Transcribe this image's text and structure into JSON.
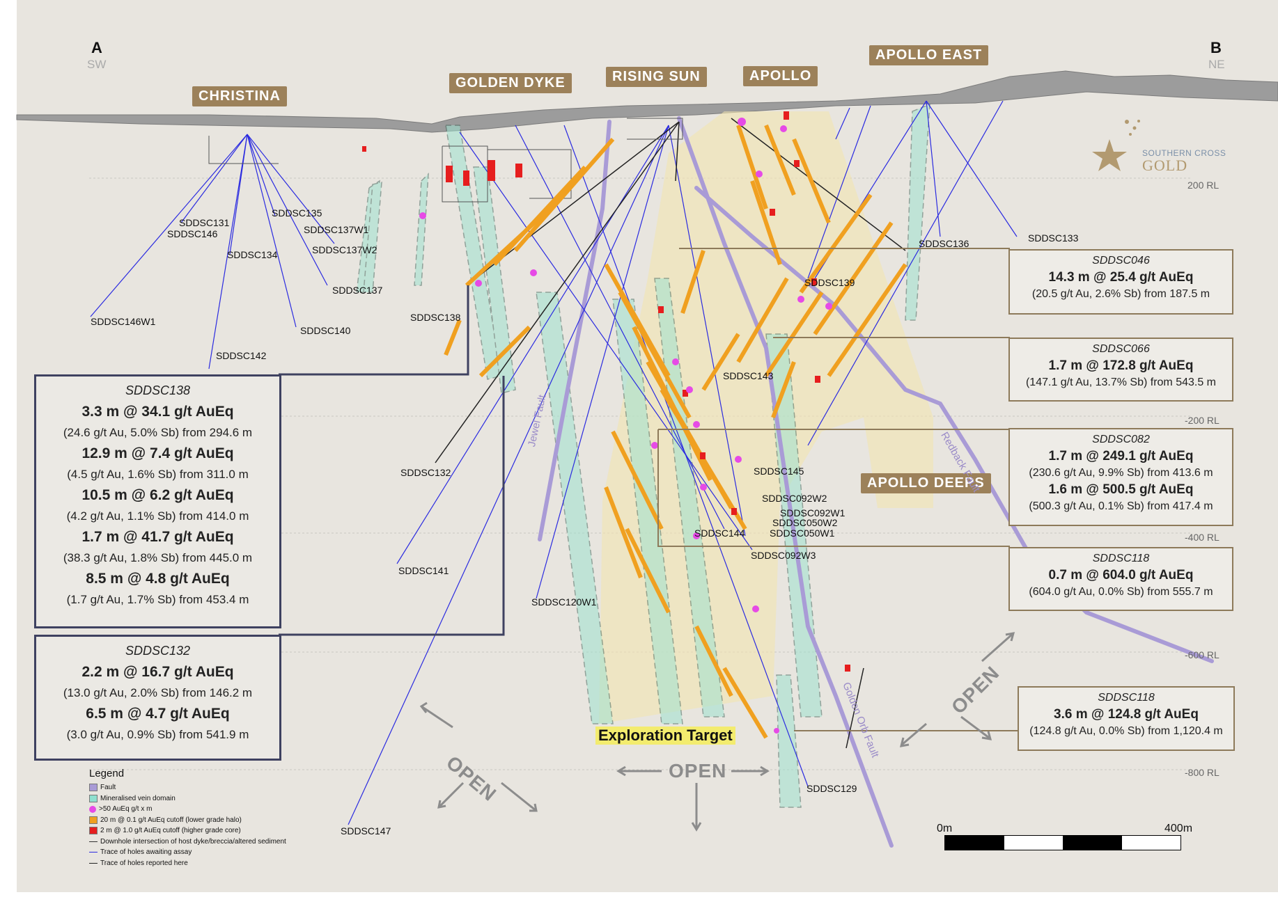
{
  "section": {
    "left_end": "A",
    "left_dir": "SW",
    "right_end": "B",
    "right_dir": "NE"
  },
  "prospects": [
    "CHRISTINA",
    "GOLDEN DYKE",
    "RISING SUN",
    "APOLLO",
    "APOLLO EAST",
    "APOLLO DEEPS"
  ],
  "rl_levels": [
    "200 RL",
    "-200 RL",
    "-400 RL",
    "-600 RL",
    "-800 RL"
  ],
  "faults": [
    "Jewel Fault",
    "Redback Fault",
    "Golden Orb Fault"
  ],
  "open_labels": [
    "OPEN",
    "OPEN",
    "OPEN"
  ],
  "exploration_target": "Exploration Target",
  "holes": [
    "SDDSC131",
    "SDDSC146",
    "SDDSC135",
    "SDDSC137W1",
    "SDDSC137W2",
    "SDDSC134",
    "SDDSC137",
    "SDDSC146W1",
    "SDDSC140",
    "SDDSC142",
    "SDDSC138",
    "SDDSC132",
    "SDDSC141",
    "SDDSC120W1",
    "SDDSC147",
    "SDDSC136",
    "SDDSC133",
    "SDDSC139",
    "SDDSC143",
    "SDDSC145",
    "SDDSC092W2",
    "SDDSC092W1",
    "SDDSC050W2",
    "SDDSC050W1",
    "SDDSC144",
    "SDDSC092W3",
    "SDDSC129"
  ],
  "callouts_right": [
    {
      "hole": "SDDSC046",
      "results": [
        {
          "main": "14.3 m @ 25.4 g/t AuEq",
          "detail": "(20.5 g/t Au, 2.6% Sb) from 187.5 m"
        }
      ]
    },
    {
      "hole": "SDDSC066",
      "results": [
        {
          "main": "1.7 m @ 172.8 g/t AuEq",
          "detail": "(147.1 g/t Au, 13.7% Sb) from 543.5 m"
        }
      ]
    },
    {
      "hole": "SDDSC082",
      "results": [
        {
          "main": "1.7 m @ 249.1 g/t AuEq",
          "detail": "(230.6 g/t Au, 9.9% Sb) from 413.6 m"
        },
        {
          "main": "1.6 m @ 500.5 g/t AuEq",
          "detail": "(500.3 g/t Au, 0.1% Sb) from 417.4 m"
        }
      ]
    },
    {
      "hole": "SDDSC118",
      "results": [
        {
          "main": "0.7 m @ 604.0 g/t AuEq",
          "detail": "(604.0 g/t Au, 0.0% Sb) from 555.7 m"
        }
      ]
    },
    {
      "hole": "SDDSC118",
      "results": [
        {
          "main": "3.6 m @ 124.8 g/t AuEq",
          "detail": "(124.8 g/t Au, 0.0% Sb) from 1,120.4 m"
        }
      ]
    }
  ],
  "callouts_left": [
    {
      "hole": "SDDSC138",
      "results": [
        {
          "main": "3.3 m @ 34.1 g/t AuEq",
          "detail": "(24.6 g/t Au, 5.0% Sb) from 294.6 m"
        },
        {
          "main": "12.9 m @ 7.4 g/t AuEq",
          "detail": "(4.5 g/t Au, 1.6% Sb) from 311.0 m"
        },
        {
          "main": "10.5 m @ 6.2 g/t AuEq",
          "detail": "(4.2 g/t Au, 1.1% Sb) from 414.0 m"
        },
        {
          "main": "1.7 m @ 41.7 g/t AuEq",
          "detail": "(38.3 g/t Au, 1.8% Sb) from 445.0 m"
        },
        {
          "main": "8.5 m @ 4.8 g/t AuEq",
          "detail": "(1.7 g/t Au, 1.7% Sb) from 453.4 m"
        }
      ]
    },
    {
      "hole": "SDDSC132",
      "results": [
        {
          "main": "2.2 m @ 16.7 g/t AuEq",
          "detail": "(13.0 g/t Au, 2.0% Sb) from 146.2 m"
        },
        {
          "main": "6.5 m @ 4.7 g/t AuEq",
          "detail": "(3.0 g/t Au, 0.9% Sb) from 541.9 m"
        }
      ]
    }
  ],
  "legend": {
    "title": "Legend",
    "items": [
      {
        "label": "Fault",
        "color": "#a99bd6",
        "kind": "box"
      },
      {
        "label": "Mineralised vein domain",
        "color": "#8fe0cf",
        "kind": "box"
      },
      {
        "label": ">50 AuEq g/t x m",
        "color": "#e64ae6",
        "kind": "dot"
      },
      {
        "label": "20 m @ 0.1 g/t AuEq cutoff (lower grade halo)",
        "color": "#f0a020",
        "kind": "box"
      },
      {
        "label": "2 m @ 1.0 g/t AuEq cutoff (higher grade core)",
        "color": "#e61e1e",
        "kind": "box"
      },
      {
        "label": "Downhole intersection of host dyke/breccia/altered sediment",
        "color": "#333333",
        "kind": "line"
      },
      {
        "label": "Trace of holes awaiting assay",
        "color": "#2a2ae0",
        "kind": "line"
      },
      {
        "label": "Trace of holes reported here",
        "color": "#222222",
        "kind": "line"
      }
    ]
  },
  "scale": {
    "start": "0m",
    "end": "400m"
  },
  "logo": {
    "line1": "SOUTHERN CROSS",
    "line2": "GOLD"
  },
  "colors": {
    "background": "#e8e5df",
    "badge": "#9c815a",
    "assay_trace": "#2a2ae0",
    "fault": "#a99bd6",
    "vein": "#8fe0cf",
    "halo": "#f0a020",
    "core": "#e61e1e"
  }
}
